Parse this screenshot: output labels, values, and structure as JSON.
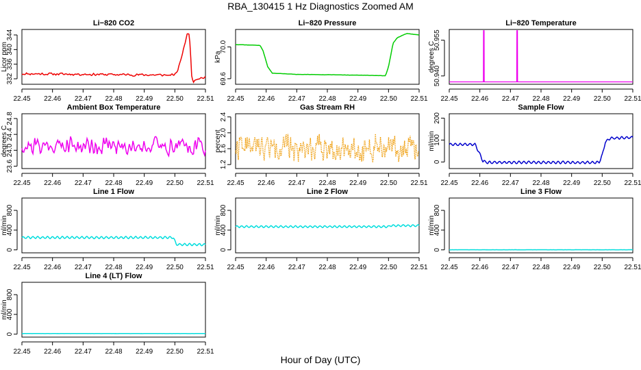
{
  "figure": {
    "title": "RBA_130415  1 Hz Diagnostics Zoomed AM",
    "xlabel": "Hour of Day (UTC)"
  },
  "chart_data": [
    {
      "type": "line",
      "title": "Li−820 CO2",
      "ylabel": "Licor ppm",
      "color": "#ee0000",
      "xlim": [
        22.45,
        22.51
      ],
      "ylim": [
        330.5,
        345.5
      ],
      "yticks": [
        332,
        336,
        340,
        344
      ],
      "xticks": [
        22.45,
        22.46,
        22.47,
        22.48,
        22.49,
        22.5,
        22.51
      ],
      "base": [
        [
          22.45,
          333.4
        ],
        [
          22.5,
          333.0
        ],
        [
          22.501,
          334.5
        ],
        [
          22.503,
          340.5
        ],
        [
          22.504,
          344.3
        ],
        [
          22.5045,
          345.0
        ],
        [
          22.505,
          341.0
        ],
        [
          22.5055,
          333.0
        ],
        [
          22.506,
          331.3
        ],
        [
          22.507,
          332.0
        ],
        [
          22.51,
          332.4
        ]
      ],
      "noise": 0.8,
      "step": 0.0003,
      "seed": 11
    },
    {
      "type": "line",
      "title": "Li−820 Pressure",
      "ylabel": "kPa",
      "color": "#00cc00",
      "xlim": [
        22.45,
        22.51
      ],
      "ylim": [
        69.53,
        70.22
      ],
      "yticks": [
        69.6,
        70.0
      ],
      "xticks": [
        22.45,
        22.46,
        22.47,
        22.48,
        22.49,
        22.5,
        22.51
      ],
      "base": [
        [
          22.45,
          70.03
        ],
        [
          22.458,
          70.02
        ],
        [
          22.459,
          69.95
        ],
        [
          22.4605,
          69.75
        ],
        [
          22.462,
          69.67
        ],
        [
          22.47,
          69.655
        ],
        [
          22.48,
          69.65
        ],
        [
          22.49,
          69.645
        ],
        [
          22.499,
          69.638
        ],
        [
          22.5,
          69.75
        ],
        [
          22.5015,
          70.05
        ],
        [
          22.503,
          70.12
        ],
        [
          22.506,
          70.17
        ],
        [
          22.51,
          70.15
        ]
      ],
      "noise": 0.004,
      "step": 0.0003,
      "seed": 12
    },
    {
      "type": "spikes",
      "title": "Li−820 Temperature",
      "ylabel": "degrees C",
      "color": "#ee00ee",
      "xlim": [
        22.45,
        22.51
      ],
      "ylim": [
        50.9365,
        50.9595
      ],
      "yticks": [
        50.94,
        50.955
      ],
      "xticks": [
        22.45,
        22.46,
        22.47,
        22.48,
        22.49,
        22.5,
        22.51
      ],
      "baseline": 50.9375,
      "spikes": [
        [
          22.4613,
          50.959
        ],
        [
          22.4722,
          50.959
        ]
      ]
    },
    {
      "type": "line",
      "title": "Ambient Box Temperature",
      "ylabel": "degrees C",
      "color": "#ee00ee",
      "xlim": [
        22.45,
        22.51
      ],
      "ylim": [
        23.54,
        24.92
      ],
      "yticks": [
        23.6,
        24.0,
        24.4,
        24.8
      ],
      "xticks": [
        22.45,
        22.46,
        22.47,
        22.48,
        22.49,
        22.5,
        22.51
      ],
      "base": [
        [
          22.45,
          24.12
        ],
        [
          22.51,
          24.12
        ]
      ],
      "noise": 0.55,
      "step": 0.0003,
      "seed": 21,
      "clip": true
    },
    {
      "type": "dotted",
      "title": "Gas Stream RH",
      "ylabel": "percent",
      "color": "#ee9900",
      "xlim": [
        22.45,
        22.51
      ],
      "ylim": [
        1.1,
        2.48
      ],
      "yticks": [
        1.2,
        1.6,
        2.0,
        2.4
      ],
      "xticks": [
        22.45,
        22.46,
        22.47,
        22.48,
        22.49,
        22.5,
        22.51
      ],
      "base": [
        [
          22.45,
          1.65
        ],
        [
          22.51,
          1.6
        ]
      ],
      "noise": 0.75,
      "step": 0.00018,
      "seed": 22,
      "clip": true
    },
    {
      "type": "line",
      "title": "Sample Flow",
      "ylabel": "ml/min",
      "color": "#0000cc",
      "xlim": [
        22.45,
        22.51
      ],
      "ylim": [
        -30,
        220
      ],
      "yticks": [
        0,
        100,
        200
      ],
      "xticks": [
        22.45,
        22.46,
        22.47,
        22.48,
        22.49,
        22.5,
        22.51
      ],
      "base": [
        [
          22.45,
          80
        ],
        [
          22.4585,
          80
        ],
        [
          22.4595,
          50
        ],
        [
          22.461,
          5
        ],
        [
          22.4625,
          -2
        ],
        [
          22.499,
          -2
        ],
        [
          22.5,
          30
        ],
        [
          22.501,
          90
        ],
        [
          22.5025,
          108
        ],
        [
          22.51,
          112
        ]
      ],
      "noise": 3,
      "wave": [
        5,
        0.0016
      ],
      "step": 0.0002,
      "seed": 23
    },
    {
      "type": "line",
      "title": "Line 1 Flow",
      "ylabel": "ml/min",
      "color": "#00dddd",
      "xlim": [
        22.45,
        22.51
      ],
      "ylim": [
        -60,
        1050
      ],
      "yticks": [
        0,
        400,
        800
      ],
      "xticks": [
        22.45,
        22.46,
        22.47,
        22.48,
        22.49,
        22.5,
        22.51
      ],
      "base": [
        [
          22.45,
          250
        ],
        [
          22.4995,
          250
        ],
        [
          22.5005,
          110
        ],
        [
          22.51,
          105
        ]
      ],
      "noise": 10,
      "wave": [
        20,
        0.0016
      ],
      "step": 0.0002,
      "seed": 31
    },
    {
      "type": "line",
      "title": "Line 2 Flow",
      "ylabel": "ml/min",
      "color": "#00dddd",
      "xlim": [
        22.45,
        22.51
      ],
      "ylim": [
        -60,
        1050
      ],
      "yticks": [
        0,
        400,
        800
      ],
      "xticks": [
        22.45,
        22.46,
        22.47,
        22.48,
        22.49,
        22.5,
        22.51
      ],
      "base": [
        [
          22.45,
          470
        ],
        [
          22.5,
          470
        ],
        [
          22.5005,
          490
        ],
        [
          22.51,
          490
        ]
      ],
      "noise": 8,
      "wave": [
        18,
        0.0016
      ],
      "step": 0.0002,
      "seed": 32
    },
    {
      "type": "line",
      "title": "Line 3 Flow",
      "ylabel": "ml/min",
      "color": "#00dddd",
      "xlim": [
        22.45,
        22.51
      ],
      "ylim": [
        -60,
        1050
      ],
      "yticks": [
        0,
        400,
        800
      ],
      "xticks": [
        22.45,
        22.46,
        22.47,
        22.48,
        22.49,
        22.5,
        22.51
      ],
      "base": [
        [
          22.45,
          2
        ],
        [
          22.51,
          2
        ]
      ],
      "noise": 3,
      "step": 0.0003,
      "seed": 33
    },
    {
      "type": "line",
      "title": "Line 4 (LT) Flow",
      "ylabel": "ml/min",
      "color": "#00dddd",
      "xlim": [
        22.45,
        22.51
      ],
      "ylim": [
        -60,
        1050
      ],
      "yticks": [
        0,
        400,
        800
      ],
      "xticks": [
        22.45,
        22.46,
        22.47,
        22.48,
        22.49,
        22.5,
        22.51
      ],
      "base": [
        [
          22.45,
          12
        ],
        [
          22.51,
          12
        ]
      ],
      "noise": 4,
      "step": 0.0003,
      "seed": 34
    }
  ]
}
